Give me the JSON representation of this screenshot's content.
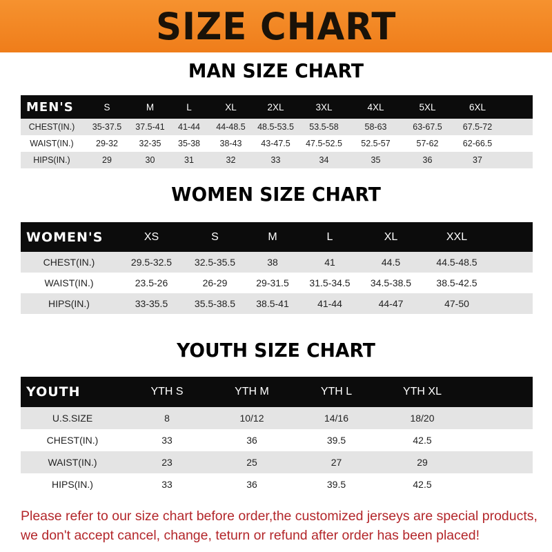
{
  "banner": {
    "title": "SIZE CHART",
    "color": "#f28a2a"
  },
  "men": {
    "title": "MAN SIZE CHART",
    "header": [
      "MEN'S",
      "S",
      "M",
      "L",
      "XL",
      "2XL",
      "3XL",
      "4XL",
      "5XL",
      "6XL"
    ],
    "rows": [
      [
        "CHEST(IN.)",
        "35-37.5",
        "37.5-41",
        "41-44",
        "44-48.5",
        "48.5-53.5",
        "53.5-58",
        "58-63",
        "63-67.5",
        "67.5-72"
      ],
      [
        "WAIST(IN.)",
        "29-32",
        "32-35",
        "35-38",
        "38-43",
        "43-47.5",
        "47.5-52.5",
        "52.5-57",
        "57-62",
        "62-66.5"
      ],
      [
        "HIPS(IN.)",
        "29",
        "30",
        "31",
        "32",
        "33",
        "34",
        "35",
        "36",
        "37"
      ]
    ]
  },
  "women": {
    "title": "WOMEN SIZE CHART",
    "header": [
      "WOMEN'S",
      "XS",
      "S",
      "M",
      "L",
      "XL",
      "XXL"
    ],
    "rows": [
      [
        "CHEST(IN.)",
        "29.5-32.5",
        "32.5-35.5",
        "38",
        "41",
        "44.5",
        "44.5-48.5"
      ],
      [
        "WAIST(IN.)",
        "23.5-26",
        "26-29",
        "29-31.5",
        "31.5-34.5",
        "34.5-38.5",
        "38.5-42.5"
      ],
      [
        "HIPS(IN.)",
        "33-35.5",
        "35.5-38.5",
        "38.5-41",
        "41-44",
        "44-47",
        "47-50"
      ]
    ]
  },
  "youth": {
    "title": "YOUTH SIZE CHART",
    "header": [
      "YOUTH",
      "YTH S",
      "YTH M",
      "YTH L",
      "YTH XL"
    ],
    "rows": [
      [
        "U.S.SIZE",
        "8",
        "10/12",
        "14/16",
        "18/20"
      ],
      [
        "CHEST(IN.)",
        "33",
        "36",
        "39.5",
        "42.5"
      ],
      [
        "WAIST(IN.)",
        "23",
        "25",
        "27",
        "29"
      ],
      [
        "HIPS(IN.)",
        "33",
        "36",
        "39.5",
        "42.5"
      ]
    ]
  },
  "notice": {
    "line1": "Please refer to our size chart before order,the customized jerseys are special products,",
    "line2": "we don't accept cancel, change, teturn or refund after order has been placed!",
    "color": "#b3262a"
  }
}
